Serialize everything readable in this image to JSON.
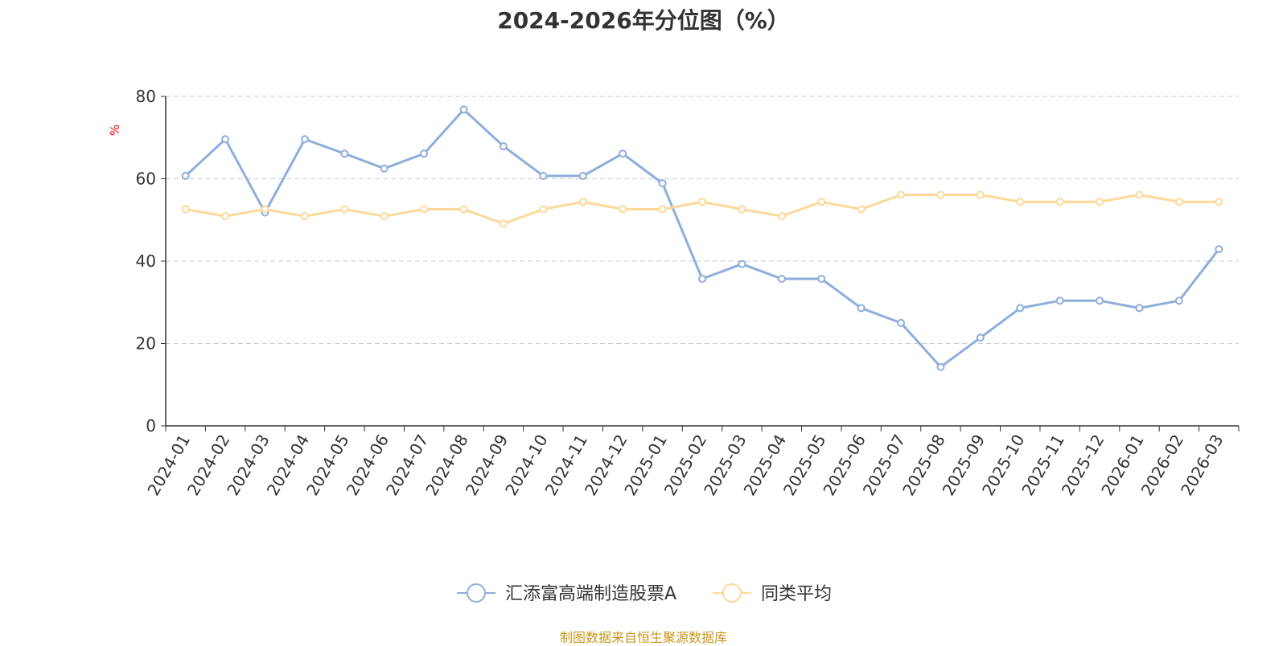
{
  "source_text": "制图数据来自恒生聚源数据库",
  "chart_data": {
    "type": "line",
    "title": "2024-2026年分位图（%）",
    "ylabel": "%",
    "xlabel": "",
    "ylim": [
      0,
      80
    ],
    "yticks": [
      0,
      20,
      40,
      60,
      80
    ],
    "grid": true,
    "legend_position": "bottom-center",
    "categories": [
      "2024-01",
      "2024-02",
      "2024-03",
      "2024-04",
      "2024-05",
      "2024-06",
      "2024-07",
      "2024-08",
      "2024-09",
      "2024-10",
      "2024-11",
      "2024-12",
      "2025-01",
      "2025-02",
      "2025-03",
      "2025-04",
      "2025-05",
      "2025-06",
      "2025-07",
      "2025-08",
      "2025-09",
      "2025-10",
      "2025-11",
      "2025-12",
      "2026-01",
      "2026-02",
      "2026-03"
    ],
    "series": [
      {
        "name": "汇添富高端制造股票A",
        "color": "#8eaedb",
        "values": [
          60.7,
          69.6,
          51.8,
          69.6,
          66.1,
          62.5,
          66.1,
          76.8,
          67.9,
          60.7,
          60.7,
          66.1,
          58.9,
          35.7,
          39.3,
          35.7,
          35.7,
          28.6,
          25.0,
          14.3,
          21.4,
          28.6,
          30.4,
          30.4,
          28.6,
          30.4,
          42.9
        ]
      },
      {
        "name": "同类平均",
        "color": "#fdd899",
        "values": [
          52.6,
          50.9,
          52.6,
          50.9,
          52.6,
          50.9,
          52.6,
          52.6,
          49.1,
          52.6,
          54.4,
          52.6,
          52.6,
          54.4,
          52.6,
          50.9,
          54.4,
          52.6,
          56.1,
          56.1,
          56.1,
          54.4,
          54.4,
          54.4,
          56.1,
          54.4,
          54.4
        ]
      }
    ]
  }
}
